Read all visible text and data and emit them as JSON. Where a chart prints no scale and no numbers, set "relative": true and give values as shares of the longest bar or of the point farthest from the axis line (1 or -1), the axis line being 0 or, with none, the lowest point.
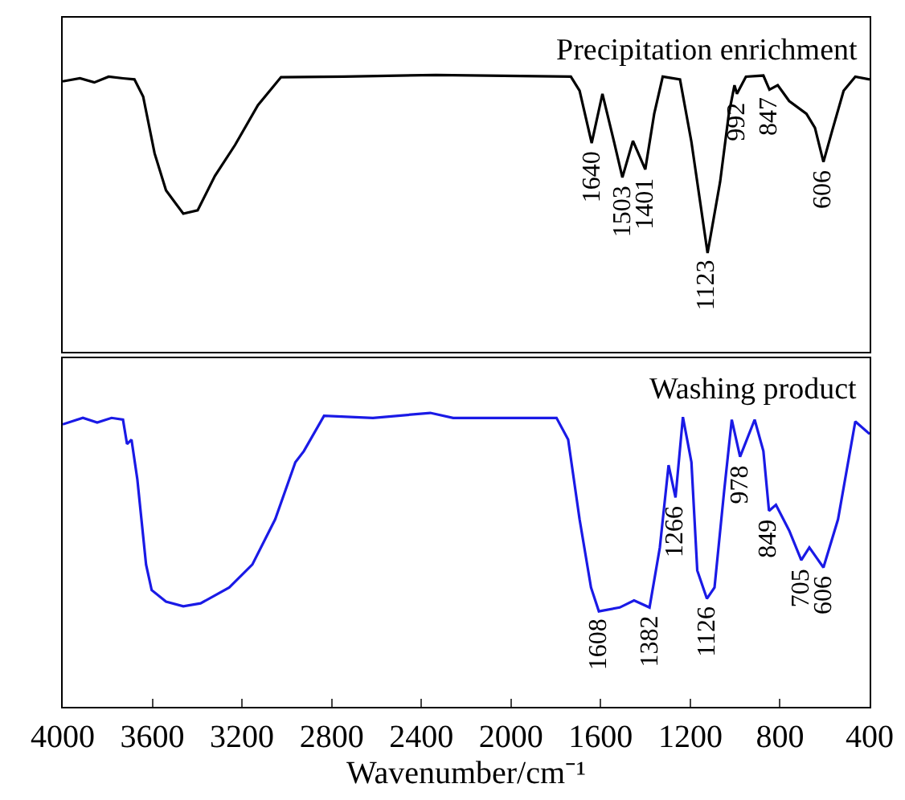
{
  "chart_data": [
    {
      "type": "line",
      "title": "Precipitation enrichment",
      "relative": true,
      "xlim": [
        4000,
        400
      ],
      "tick_labels": false,
      "line_style": "solid",
      "series": [
        {
          "color": "#000000",
          "x": [
            4000,
            3923,
            3859,
            3795,
            3731,
            3680,
            3641,
            3590,
            3539,
            3462,
            3398,
            3321,
            3231,
            3129,
            3026,
            2745,
            2335,
            1733,
            1694,
            1640,
            1592,
            1540,
            1503,
            1456,
            1401,
            1361,
            1323,
            1246,
            1195,
            1123,
            1067,
            1028,
            1003,
            992,
            952,
            874,
            847,
            810,
            759,
            682,
            644,
            606,
            567,
            516,
            464,
            400
          ],
          "values": [
            0.977,
            0.988,
            0.973,
            0.994,
            0.988,
            0.984,
            0.922,
            0.717,
            0.583,
            0.499,
            0.511,
            0.635,
            0.747,
            0.891,
            0.992,
            0.994,
            1,
            0.994,
            0.943,
            0.754,
            0.932,
            0.758,
            0.63,
            0.762,
            0.659,
            0.86,
            0.994,
            0.984,
            0.758,
            0.357,
            0.614,
            0.86,
            0.963,
            0.932,
            0.994,
            0.998,
            0.947,
            0.963,
            0.906,
            0.86,
            0.809,
            0.686,
            0.799,
            0.943,
            0.994,
            0.984
          ]
        }
      ],
      "annotations": [
        {
          "text": "1640",
          "x": 1640,
          "y": 0.754
        },
        {
          "text": "1503",
          "x": 1503,
          "y": 0.63
        },
        {
          "text": "1401",
          "x": 1401,
          "y": 0.659
        },
        {
          "text": "1123",
          "x": 1123,
          "y": 0.357
        },
        {
          "text": "992",
          "x": 992,
          "y": 0.932
        },
        {
          "text": "847",
          "x": 847,
          "y": 0.947
        },
        {
          "text": "606",
          "x": 606,
          "y": 0.686
        }
      ]
    },
    {
      "type": "line",
      "title": "Washing product",
      "relative": true,
      "xlim": [
        4000,
        400
      ],
      "xticks": [
        4000,
        3600,
        3200,
        2800,
        2400,
        2000,
        1600,
        1200,
        800,
        400
      ],
      "tick_labels": "x",
      "xlabel": "Wavenumber/cm⁻¹",
      "line_style": "solid",
      "series": [
        {
          "color": "#1a1ae6",
          "x": [
            4000,
            3910,
            3846,
            3782,
            3731,
            3713,
            3693,
            3667,
            3628,
            3603,
            3539,
            3462,
            3385,
            3257,
            3154,
            3052,
            2962,
            2924,
            2834,
            2616,
            2360,
            2258,
            1797,
            1745,
            1694,
            1643,
            1608,
            1515,
            1451,
            1382,
            1336,
            1297,
            1266,
            1233,
            1195,
            1169,
            1126,
            1092,
            1049,
            1015,
            978,
            913,
            874,
            849,
            818,
            759,
            705,
            669,
            606,
            541,
            464,
            400
          ],
          "values": [
            0.961,
            0.983,
            0.967,
            0.983,
            0.977,
            0.894,
            0.909,
            0.774,
            0.484,
            0.397,
            0.358,
            0.342,
            0.352,
            0.406,
            0.484,
            0.638,
            0.832,
            0.87,
            0.99,
            0.983,
            1,
            0.983,
            0.983,
            0.909,
            0.638,
            0.406,
            0.325,
            0.338,
            0.362,
            0.338,
            0.542,
            0.822,
            0.712,
            0.986,
            0.832,
            0.464,
            0.368,
            0.406,
            0.735,
            0.977,
            0.851,
            0.977,
            0.87,
            0.667,
            0.687,
            0.6,
            0.499,
            0.542,
            0.474,
            0.638,
            0.971,
            0.928
          ]
        }
      ],
      "annotations": [
        {
          "text": "1608",
          "x": 1608,
          "y": 0.325
        },
        {
          "text": "1382",
          "x": 1382,
          "y": 0.338
        },
        {
          "text": "1266",
          "x": 1266,
          "y": 0.712
        },
        {
          "text": "1126",
          "x": 1126,
          "y": 0.368
        },
        {
          "text": "978",
          "x": 978,
          "y": 0.851
        },
        {
          "text": "849",
          "x": 849,
          "y": 0.667
        },
        {
          "text": "705",
          "x": 705,
          "y": 0.499
        },
        {
          "text": "606",
          "x": 606,
          "y": 0.474
        }
      ]
    }
  ]
}
